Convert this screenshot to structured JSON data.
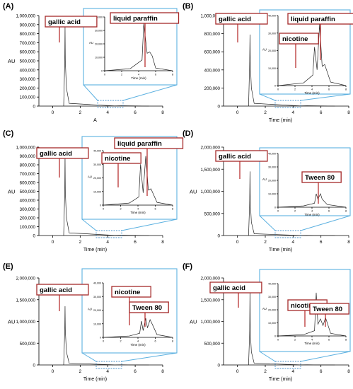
{
  "chart_data": [
    {
      "type": "line",
      "panel_label": "(A)",
      "xlabel": "A",
      "ylabel": "AU",
      "xlim": [
        -1,
        8
      ],
      "ylim": [
        0,
        1000000
      ],
      "x_ticks": [
        0,
        2,
        4,
        6,
        8
      ],
      "y_ticks": [
        0,
        100000,
        200000,
        300000,
        400000,
        500000,
        600000,
        700000,
        800000,
        900000,
        1000000
      ],
      "y_tick_labels": [
        "0",
        "100,000",
        "200,000",
        "300,000",
        "400,000",
        "500,000",
        "600,000",
        "700,000",
        "800,000",
        "900,000",
        "1,000,000"
      ],
      "series": [
        {
          "x": [
            0.8,
            0.88,
            0.9,
            0.92,
            1.0,
            1.2,
            4.5,
            5.0,
            5.5,
            6.0,
            7.0
          ],
          "values": [
            0,
            500000,
            880000,
            500000,
            200000,
            30000,
            2000,
            4000,
            3000,
            2000,
            0
          ]
        }
      ],
      "peak_labels": [
        "gallic acid",
        "liquid paraffin"
      ],
      "zoom_range": {
        "x": [
          3.5,
          5.5
        ]
      },
      "inset": {
        "xlim": [
          0,
          8
        ],
        "ylim": [
          0,
          40000
        ],
        "x_ticks": [
          0,
          2,
          4,
          6,
          8
        ],
        "x_tick_labels": [
          "0",
          "2",
          "4",
          "6",
          "8"
        ],
        "y_ticks": [
          0,
          10000,
          20000,
          30000,
          40000
        ],
        "y_tick_labels": [
          "0",
          "10,000",
          "20,000",
          "30,000",
          "40,000"
        ],
        "ylabel": "AU",
        "series": [
          {
            "x": [
              0,
              3,
              4.4,
              4.6,
              5.0,
              5.3,
              5.6,
              6.0,
              8
            ],
            "values": [
              0,
              1500,
              8000,
              35000,
              13000,
              14000,
              11000,
              2000,
              0
            ]
          }
        ],
        "peak_labels": []
      }
    },
    {
      "type": "line",
      "panel_label": "(B)",
      "xlabel": "Time (min)",
      "ylabel": "",
      "xlim": [
        -1,
        8
      ],
      "ylim": [
        0,
        1000000
      ],
      "x_ticks": [
        0,
        2,
        4,
        6,
        8
      ],
      "y_ticks": [
        0,
        200000,
        400000,
        600000,
        800000,
        1000000
      ],
      "y_tick_labels": [
        "0",
        "200,000",
        "400,000",
        "600,000",
        "800,000",
        "1,000,000"
      ],
      "series": [
        {
          "x": [
            0.8,
            0.88,
            0.9,
            0.92,
            1.0,
            1.2,
            4.5,
            5.0,
            5.5,
            6.0,
            7.0
          ],
          "values": [
            0,
            500000,
            790000,
            500000,
            200000,
            30000,
            2000,
            4000,
            3000,
            2000,
            0
          ]
        }
      ],
      "peak_labels": [
        "gallic acid"
      ],
      "zoom_range": {
        "x": [
          3.5,
          5.5
        ]
      },
      "inset": {
        "xlim": [
          0,
          8
        ],
        "ylim": [
          0,
          40000
        ],
        "x_ticks": [
          0,
          2,
          4,
          6,
          8
        ],
        "x_tick_labels": [
          "0",
          "2",
          "4",
          "6",
          "8"
        ],
        "y_ticks": [
          0,
          10000,
          20000,
          30000,
          40000
        ],
        "y_tick_labels": [
          "0",
          "10,000",
          "20,000",
          "30,000",
          "40,000"
        ],
        "ylabel": "AU",
        "series": [
          {
            "x": [
              0,
              3,
              4.1,
              4.3,
              4.6,
              4.9,
              5.2,
              5.5,
              6.2,
              8
            ],
            "values": [
              0,
              1500,
              6000,
              22000,
              9000,
              35000,
              11000,
              12000,
              2000,
              0
            ]
          }
        ],
        "peak_labels": [
          "nicotine",
          "liquid paraffin"
        ]
      }
    },
    {
      "type": "line",
      "panel_label": "(C)",
      "xlabel": "Time (min)",
      "ylabel": "AU",
      "xlim": [
        -1,
        8
      ],
      "ylim": [
        0,
        1000000
      ],
      "x_ticks": [
        0,
        2,
        4,
        6,
        8
      ],
      "y_ticks": [
        0,
        100000,
        200000,
        300000,
        400000,
        500000,
        600000,
        700000,
        800000,
        900000,
        1000000
      ],
      "y_tick_labels": [
        "0",
        "100,000",
        "200,000",
        "300,000",
        "400,000",
        "500,000",
        "600,000",
        "700,000",
        "800,000",
        "900,000",
        "1,000,000"
      ],
      "series": [
        {
          "x": [
            0.8,
            0.88,
            0.9,
            0.92,
            1.0,
            1.2,
            4.5,
            5.0,
            5.5,
            6.0,
            7.0
          ],
          "values": [
            0,
            500000,
            910000,
            500000,
            200000,
            30000,
            2000,
            4000,
            3000,
            2000,
            0
          ]
        }
      ],
      "peak_labels": [
        "gallic acid"
      ],
      "zoom_range": {
        "x": [
          3.5,
          5.5
        ]
      },
      "inset": {
        "xlim": [
          0,
          8
        ],
        "ylim": [
          0,
          40000
        ],
        "x_ticks": [
          0,
          2,
          4,
          6,
          8
        ],
        "x_tick_labels": [
          "0",
          "2",
          "4",
          "6",
          "8"
        ],
        "y_ticks": [
          0,
          10000,
          20000,
          30000,
          40000
        ],
        "y_tick_labels": [
          "0",
          "10,000",
          "20,000",
          "30,000",
          "40,000"
        ],
        "ylabel": "AU",
        "series": [
          {
            "x": [
              0,
              3,
              4.1,
              4.3,
              4.6,
              4.9,
              5.2,
              5.5,
              6.2,
              8
            ],
            "values": [
              0,
              1500,
              6000,
              30000,
              9000,
              36000,
              11000,
              12000,
              2000,
              0
            ]
          }
        ],
        "peak_labels": [
          "nicotine",
          "liquid paraffin"
        ]
      }
    },
    {
      "type": "line",
      "panel_label": "(D)",
      "xlabel": "Time (min)",
      "ylabel": "AU",
      "xlim": [
        -1,
        8
      ],
      "ylim": [
        0,
        2000000
      ],
      "x_ticks": [
        0,
        2,
        4,
        6,
        8
      ],
      "y_ticks": [
        0,
        500000,
        1000000,
        1500000,
        2000000
      ],
      "y_tick_labels": [
        "0",
        "500,000",
        "1,000,000",
        "1,500,000",
        "2,000,000"
      ],
      "series": [
        {
          "x": [
            0.8,
            0.88,
            0.9,
            0.92,
            1.0,
            1.2,
            4.5,
            5.0,
            5.5,
            6.0,
            7.0
          ],
          "values": [
            0,
            800000,
            1450000,
            800000,
            300000,
            40000,
            2000,
            4000,
            3000,
            2000,
            0
          ]
        }
      ],
      "peak_labels": [
        "gallic acid"
      ],
      "zoom_range": {
        "x": [
          3.5,
          5.5
        ]
      },
      "inset": {
        "xlim": [
          0,
          8
        ],
        "ylim": [
          0,
          40000
        ],
        "x_ticks": [
          0,
          2,
          4,
          6,
          8
        ],
        "x_tick_labels": [
          "0",
          "2",
          "4",
          "6",
          "8"
        ],
        "y_ticks": [
          0,
          10000,
          20000,
          30000,
          40000
        ],
        "y_tick_labels": [
          "0",
          "10,000",
          "20,000",
          "30,000",
          "40,000"
        ],
        "ylabel": "AU",
        "series": [
          {
            "x": [
              0,
              3,
              4.3,
              4.5,
              4.7,
              5.0,
              5.2,
              5.8,
              8
            ],
            "values": [
              0,
              1000,
              3000,
              10000,
              6000,
              10000,
              6000,
              2000,
              0
            ]
          }
        ],
        "peak_labels": [
          "Tween 80"
        ]
      }
    },
    {
      "type": "line",
      "panel_label": "(E)",
      "xlabel": "Time (min)",
      "ylabel": "AU",
      "xlim": [
        -1,
        8
      ],
      "ylim": [
        0,
        2000000
      ],
      "x_ticks": [
        0,
        2,
        4,
        6,
        8
      ],
      "y_ticks": [
        0,
        500000,
        1000000,
        1500000,
        2000000
      ],
      "y_tick_labels": [
        "0",
        "500,000",
        "1,000,000",
        "1,500,000",
        "2,000,000"
      ],
      "series": [
        {
          "x": [
            0.8,
            0.88,
            0.9,
            0.92,
            1.0,
            1.2,
            4.5,
            5.0,
            5.5,
            6.0,
            7.0
          ],
          "values": [
            0,
            800000,
            1350000,
            800000,
            300000,
            40000,
            2000,
            4000,
            3000,
            2000,
            0
          ]
        }
      ],
      "peak_labels": [
        "gallic acid"
      ],
      "zoom_range": {
        "x": [
          3.5,
          5.5
        ]
      },
      "inset": {
        "xlim": [
          0,
          8
        ],
        "ylim": [
          0,
          40000
        ],
        "x_ticks": [
          0,
          2,
          4,
          6,
          8
        ],
        "x_tick_labels": [
          "0",
          "2",
          "4",
          "6",
          "8"
        ],
        "y_ticks": [
          0,
          10000,
          20000,
          30000,
          40000
        ],
        "y_tick_labels": [
          "0",
          "10,000",
          "20,000",
          "30,000",
          "40,000"
        ],
        "ylabel": "AU",
        "series": [
          {
            "x": [
              0,
              3,
              4.2,
              4.4,
              4.6,
              4.9,
              5.1,
              5.4,
              5.7,
              6.2,
              8
            ],
            "values": [
              0,
              1000,
              3000,
              12000,
              5000,
              14000,
              7000,
              13000,
              9000,
              2000,
              0
            ]
          }
        ],
        "peak_labels": [
          "nicotine",
          "Tween 80"
        ]
      }
    },
    {
      "type": "line",
      "panel_label": "(F)",
      "xlabel": "Time (min)",
      "ylabel": "AU",
      "xlim": [
        -1,
        8
      ],
      "ylim": [
        0,
        2000000
      ],
      "x_ticks": [
        0,
        2,
        4,
        6,
        8
      ],
      "y_ticks": [
        0,
        500000,
        1000000,
        1500000,
        2000000
      ],
      "y_tick_labels": [
        "0",
        "500,000",
        "1,000,000",
        "1,500,000",
        "2,000,000"
      ],
      "series": [
        {
          "x": [
            0.8,
            0.88,
            0.9,
            0.92,
            1.0,
            1.2,
            4.5,
            5.0,
            5.5,
            6.0,
            7.0
          ],
          "values": [
            0,
            800000,
            1750000,
            800000,
            300000,
            40000,
            2000,
            4000,
            3000,
            2000,
            0
          ]
        }
      ],
      "peak_labels": [
        "gallic acid"
      ],
      "zoom_range": {
        "x": [
          3.5,
          5.5
        ]
      },
      "inset": {
        "xlim": [
          0,
          8
        ],
        "ylim": [
          0,
          40000
        ],
        "x_ticks": [
          0,
          2,
          4,
          6,
          8
        ],
        "x_tick_labels": [
          "0",
          "2",
          "4",
          "6",
          "8"
        ],
        "y_ticks": [
          0,
          10000,
          20000,
          30000,
          40000
        ],
        "y_tick_labels": [
          "0",
          "10,000",
          "20,000",
          "30,000",
          "40,000"
        ],
        "ylabel": "AU",
        "series": [
          {
            "x": [
              0,
              3,
              4.3,
              4.5,
              4.7,
              5.0,
              5.3,
              5.6,
              6.2,
              8
            ],
            "values": [
              0,
              1000,
              4000,
              33000,
              9000,
              13000,
              8000,
              14000,
              2000,
              0
            ]
          }
        ],
        "peak_labels": [
          "nicotine",
          "Tween 80"
        ]
      }
    }
  ],
  "inset_xlabel": "Time (min)"
}
